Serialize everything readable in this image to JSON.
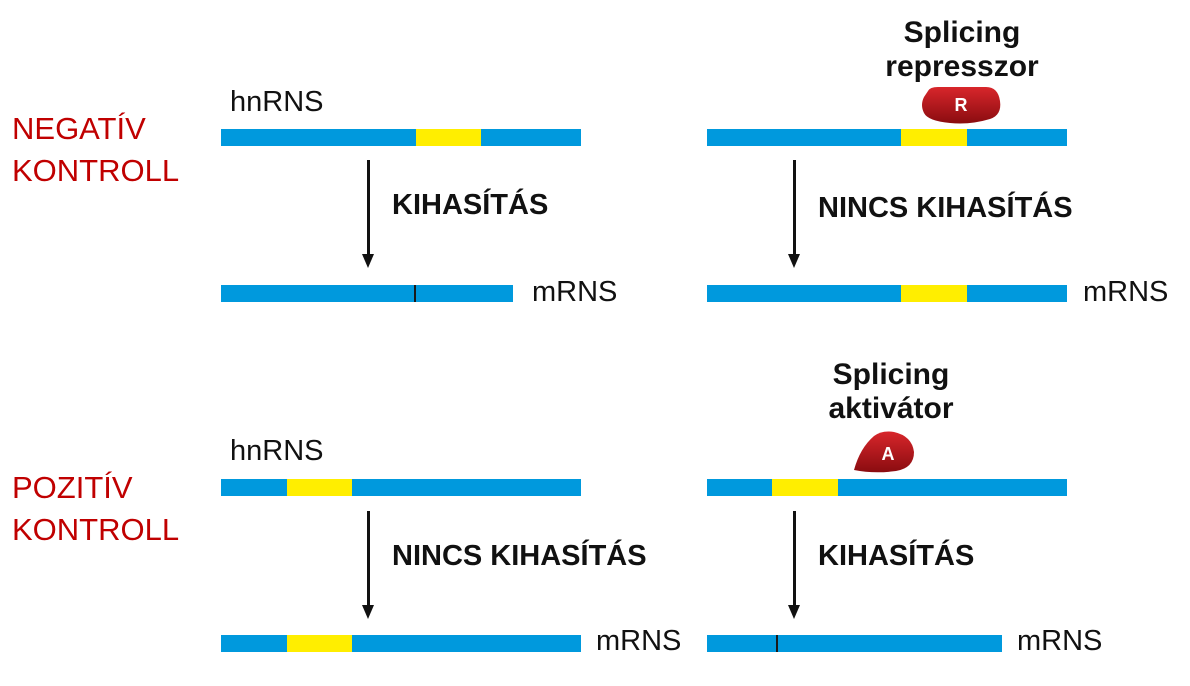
{
  "colors": {
    "exon": "#0099dd",
    "intron": "#ffee00",
    "section_label": "#c00000",
    "protein": "#b01318",
    "protein_text": "#ffffff"
  },
  "negative": {
    "label_line1": "NEGATÍV",
    "label_line2": "KONTROLL",
    "left": {
      "pre_label": "hnRNS",
      "process": "KIHASÍTÁS",
      "post_label": "mRNS"
    },
    "right": {
      "factor_line1": "Splicing",
      "factor_line2": "represszor",
      "factor_symbol": "R",
      "process": "NINCS KIHASÍTÁS",
      "post_label": "mRNS"
    }
  },
  "positive": {
    "label_line1": "POZITÍV",
    "label_line2": "KONTROLL",
    "left": {
      "pre_label": "hnRNS",
      "process": "NINCS KIHASÍTÁS",
      "post_label": "mRNS"
    },
    "right": {
      "factor_line1": "Splicing",
      "factor_line2": "aktivátor",
      "factor_symbol": "A",
      "process": "KIHASÍTÁS",
      "post_label": "mRNS"
    }
  }
}
